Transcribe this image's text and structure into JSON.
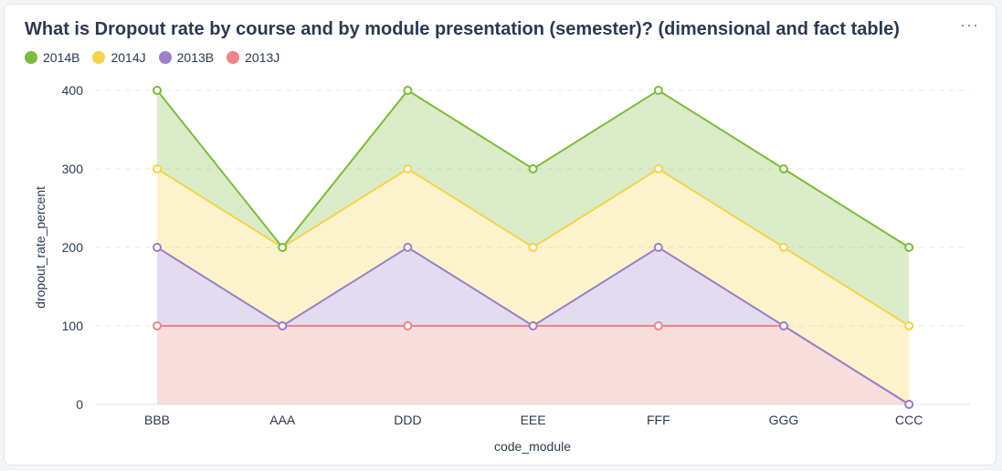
{
  "title": "What is Dropout rate by course and by module presentation (semester)? (dimensional and fact table)",
  "more_label": "···",
  "colors": {
    "2014B": "#7dbb3c",
    "2014J": "#f5d34c",
    "2013B": "#9b7fc7",
    "2013J": "#ec8585"
  },
  "chart_data": {
    "type": "area",
    "stacked": true,
    "xlabel": "code_module",
    "ylabel": "dropout_rate_percent",
    "categories": [
      "BBB",
      "AAA",
      "DDD",
      "EEE",
      "FFF",
      "GGG",
      "CCC"
    ],
    "y_ticks": [
      0,
      100,
      200,
      300,
      400
    ],
    "ylim": [
      0,
      400
    ],
    "grid": true,
    "legend_position": "top-left",
    "series": [
      {
        "name": "2013J",
        "values": [
          100,
          100,
          100,
          100,
          100,
          100,
          0
        ]
      },
      {
        "name": "2013B",
        "values": [
          100,
          0,
          100,
          0,
          100,
          0,
          0
        ]
      },
      {
        "name": "2014J",
        "values": [
          100,
          100,
          100,
          100,
          100,
          100,
          100
        ]
      },
      {
        "name": "2014B",
        "values": [
          100,
          0,
          100,
          100,
          100,
          100,
          100
        ]
      }
    ],
    "legend_order": [
      "2014B",
      "2014J",
      "2013B",
      "2013J"
    ]
  }
}
